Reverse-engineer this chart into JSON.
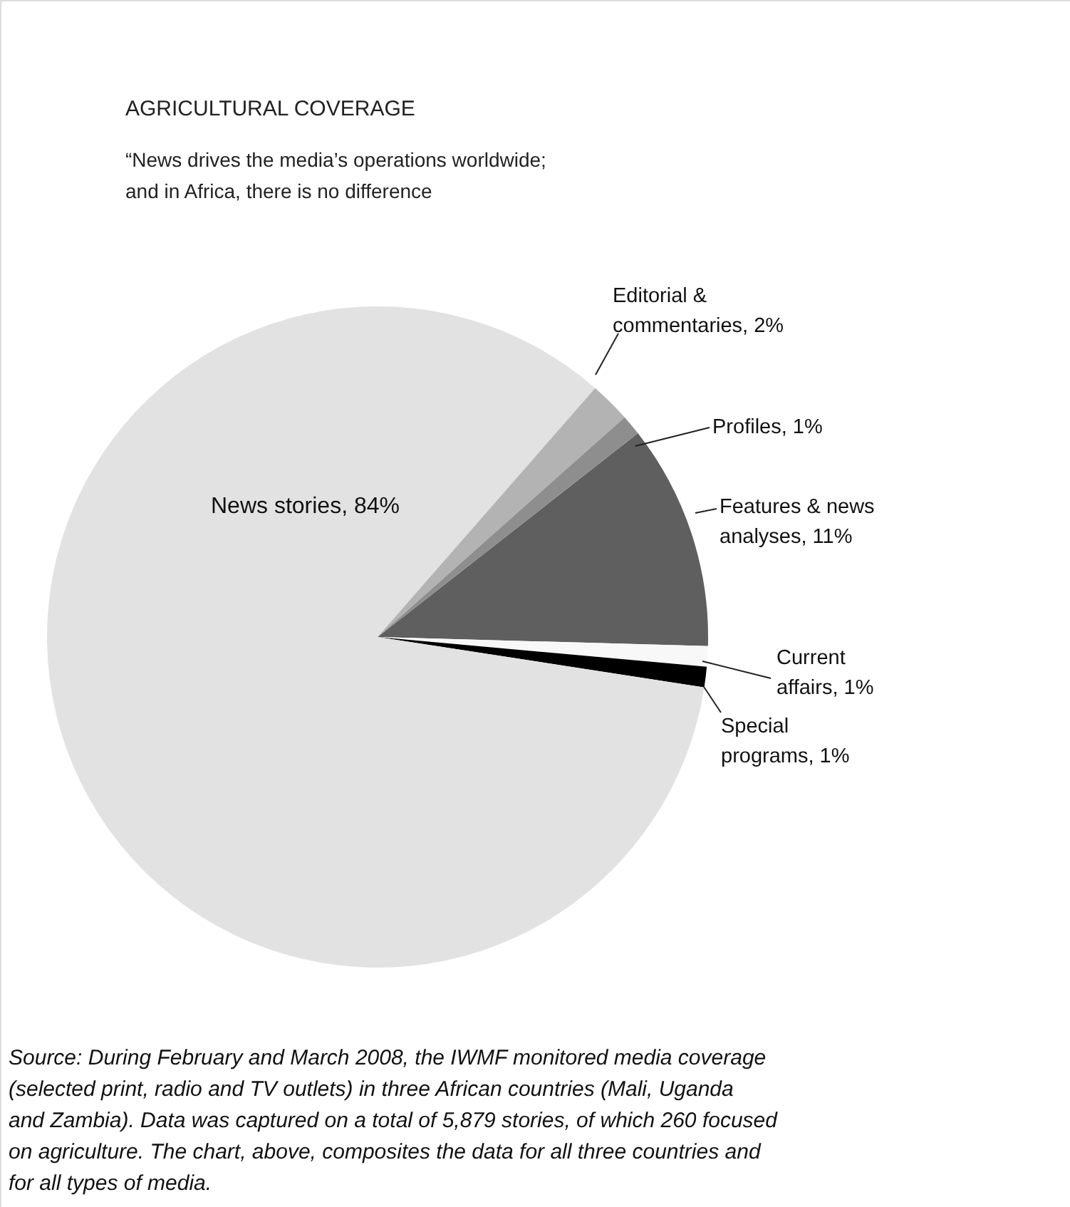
{
  "chart_data": {
    "type": "pie",
    "title": "AGRICULTURAL COVERAGE",
    "subtitle": "“News drives the media’s operations worldwide; and in Africa, there is no difference",
    "categories": [
      "Features & news analyses",
      "Current affairs",
      "Special programs",
      "News stories",
      "Editorial & commentaries",
      "Profiles"
    ],
    "values": [
      11,
      1,
      1,
      84,
      2,
      1
    ],
    "value_labels": [
      "11%",
      "1%",
      "1%",
      "84%",
      "2%",
      "1%"
    ],
    "colors": [
      "#5f5f5f",
      "#f8f8f8",
      "#000000",
      "#e2e2e2",
      "#b3b3b3",
      "#8e8e8e"
    ],
    "annotations": [
      "Source: During February and March 2008, the IWMF monitored media coverage (selected print, radio and TV outlets) in three African countries (Mali, Uganda and Zambia). Data was captured on a total of 5,879 stories, of which 260 focused on agriculture. The chart, above, composites the data for all three countries and for all types of media."
    ]
  }
}
